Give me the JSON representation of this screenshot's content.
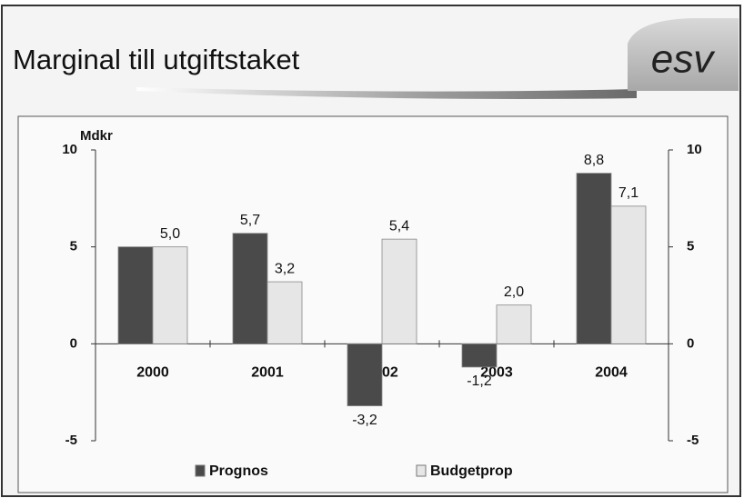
{
  "logo": "esv",
  "chart_data": {
    "type": "bar",
    "title": "Marginal till utgiftstaket",
    "y_label": "Mdkr",
    "categories": [
      "2000",
      "2001",
      "2002",
      "2003",
      "2004"
    ],
    "series": [
      {
        "name": "Prognos",
        "color": "#4a4a4a",
        "values": [
          5.0,
          5.7,
          -3.2,
          -1.2,
          8.8
        ],
        "value_labels": [
          null,
          "5,7",
          "-3,2",
          "-1,2",
          "8,8"
        ]
      },
      {
        "name": "Budgetprop",
        "color": "#e6e6e6",
        "values": [
          5.0,
          3.2,
          5.4,
          2.0,
          7.1
        ],
        "value_labels": [
          "5,0",
          "3,2",
          "5,4",
          "2,0",
          "7,1"
        ]
      }
    ],
    "ylim": [
      -5,
      10
    ],
    "yticks": [
      -5,
      0,
      5,
      10
    ],
    "y2lim": [
      -5,
      10
    ],
    "y2ticks": [
      -5,
      0,
      5,
      10
    ],
    "grid": false,
    "legend": "bottom"
  }
}
